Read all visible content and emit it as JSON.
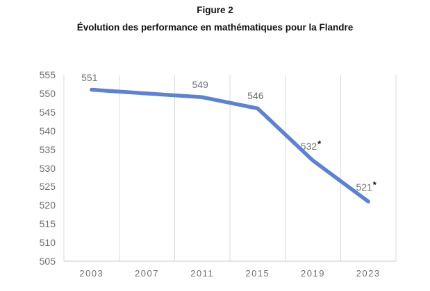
{
  "figure": {
    "title": "Figure 2",
    "subtitle": "Évolution des performance en mathématiques pour la Flandre"
  },
  "chart_data": {
    "type": "line",
    "title": "Figure 2",
    "subtitle": "Évolution des performance en mathématiques pour la Flandre",
    "categories": [
      "2003",
      "2007",
      "2011",
      "2015",
      "2019",
      "2023"
    ],
    "series": [
      {
        "name": "Flandre",
        "color": "#5b82d6",
        "points": [
          {
            "category": "2003",
            "value": 551,
            "label": "551",
            "starred": false
          },
          {
            "category": "2011",
            "value": 549,
            "label": "549",
            "starred": false
          },
          {
            "category": "2015",
            "value": 546,
            "label": "546",
            "starred": false
          },
          {
            "category": "2019",
            "value": 532,
            "label": "532",
            "starred": true
          },
          {
            "category": "2023",
            "value": 521,
            "label": "521",
            "starred": true
          }
        ]
      }
    ],
    "ylim": [
      505,
      555
    ],
    "ytick_step": 5,
    "xlabel": "",
    "ylabel": "",
    "grid": "vertical-only",
    "legend": "none",
    "axis_label_color": "#6e6e6e",
    "data_label_color": "#6f6f6f",
    "gridline_color": "#d9d9d9",
    "axis_line_color": "#c9c9c9",
    "star_color": "#111111"
  }
}
